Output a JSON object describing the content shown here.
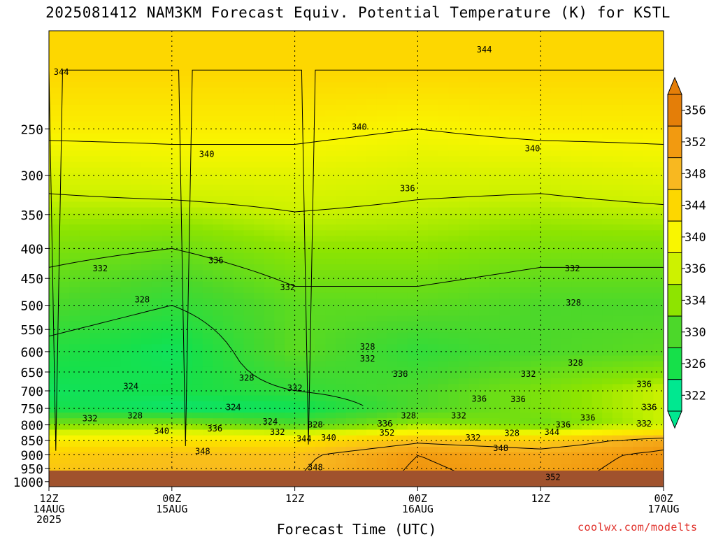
{
  "chart_data": {
    "type": "heatmap",
    "title": "2025081412 NAM3KM Forecast Equiv. Potential Temperature (K) for KSTL",
    "xlabel": "Forecast Time (UTC)",
    "ylabel": "",
    "x_ticks": [
      {
        "hour": 0,
        "lines": [
          "12Z",
          "14AUG",
          "2025"
        ]
      },
      {
        "hour": 12,
        "lines": [
          "00Z",
          "15AUG"
        ]
      },
      {
        "hour": 24,
        "lines": [
          "12Z"
        ]
      },
      {
        "hour": 36,
        "lines": [
          "00Z",
          "16AUG"
        ]
      },
      {
        "hour": 48,
        "lines": [
          "12Z"
        ]
      },
      {
        "hour": 60,
        "lines": [
          "00Z",
          "17AUG"
        ]
      }
    ],
    "xlim_hours": [
      0,
      60
    ],
    "y_scale": "log",
    "ylim_hpa": [
      1020,
      170
    ],
    "y_ticks_hpa": [
      250,
      300,
      350,
      400,
      450,
      500,
      550,
      600,
      650,
      700,
      750,
      800,
      850,
      900,
      950,
      1000
    ],
    "grid": true,
    "colorbar": {
      "labels": [
        356,
        352,
        348,
        344,
        340,
        336,
        334,
        330,
        326,
        322
      ],
      "colors": [
        "#e47e08",
        "#f29a10",
        "#f8b820",
        "#fdd700",
        "#f9f600",
        "#cdf200",
        "#8ee400",
        "#4cd82a",
        "#16e04a",
        "#00e890"
      ]
    },
    "profiles": [
      {
        "hour": 0,
        "p_hpa": [
          1000,
          900,
          850,
          800,
          750,
          700,
          600,
          500,
          400,
          300,
          250,
          200
        ],
        "theta_e_k": [
          347,
          345,
          341,
          333,
          326,
          325,
          327,
          330,
          333,
          337,
          341,
          344
        ]
      },
      {
        "hour": 12,
        "p_hpa": [
          1000,
          900,
          850,
          800,
          750,
          700,
          600,
          500,
          400,
          300,
          250,
          200
        ],
        "theta_e_k": [
          348,
          347,
          342,
          334,
          324,
          326,
          325,
          328,
          332,
          338,
          341,
          344
        ]
      },
      {
        "hour": 24,
        "p_hpa": [
          1000,
          900,
          850,
          800,
          750,
          700,
          600,
          500,
          400,
          300,
          250,
          200
        ],
        "theta_e_k": [
          348,
          347,
          342,
          330,
          325,
          328,
          331,
          331,
          334,
          338,
          341,
          344
        ]
      },
      {
        "hour": 36,
        "p_hpa": [
          1000,
          900,
          850,
          800,
          750,
          700,
          600,
          500,
          400,
          300,
          250,
          200
        ],
        "theta_e_k": [
          353,
          352,
          347,
          334,
          330,
          330,
          328,
          331,
          334,
          337,
          340,
          344
        ]
      },
      {
        "hour": 48,
        "p_hpa": [
          1000,
          900,
          850,
          800,
          750,
          700,
          600,
          500,
          400,
          300,
          250,
          200
        ],
        "theta_e_k": [
          351,
          350,
          345,
          332,
          333,
          333,
          330,
          330,
          333,
          337,
          341,
          344
        ]
      },
      {
        "hour": 60,
        "p_hpa": [
          1000,
          900,
          850,
          800,
          750,
          700,
          600,
          500,
          400,
          300,
          250,
          200
        ],
        "theta_e_k": [
          354,
          353,
          350,
          336,
          336,
          336,
          331,
          330,
          333,
          338,
          341,
          344
        ]
      }
    ],
    "contour_labels": [
      {
        "text": "344",
        "hour": 1.2,
        "p_hpa": 200
      },
      {
        "text": "344",
        "hour": 42.5,
        "p_hpa": 183
      },
      {
        "text": "340",
        "hour": 30.3,
        "p_hpa": 248
      },
      {
        "text": "340",
        "hour": 15.4,
        "p_hpa": 276
      },
      {
        "text": "340",
        "hour": 47.2,
        "p_hpa": 270
      },
      {
        "text": "336",
        "hour": 35.0,
        "p_hpa": 316
      },
      {
        "text": "336",
        "hour": 16.3,
        "p_hpa": 419
      },
      {
        "text": "332",
        "hour": 5.0,
        "p_hpa": 433
      },
      {
        "text": "332",
        "hour": 51.1,
        "p_hpa": 433
      },
      {
        "text": "332",
        "hour": 23.3,
        "p_hpa": 466
      },
      {
        "text": "328",
        "hour": 9.1,
        "p_hpa": 489
      },
      {
        "text": "328",
        "hour": 51.2,
        "p_hpa": 495
      },
      {
        "text": "328",
        "hour": 31.1,
        "p_hpa": 589
      },
      {
        "text": "332",
        "hour": 31.1,
        "p_hpa": 617
      },
      {
        "text": "328",
        "hour": 51.4,
        "p_hpa": 627
      },
      {
        "text": "328",
        "hour": 19.3,
        "p_hpa": 665
      },
      {
        "text": "336",
        "hour": 34.3,
        "p_hpa": 655
      },
      {
        "text": "332",
        "hour": 46.8,
        "p_hpa": 655
      },
      {
        "text": "324",
        "hour": 8.0,
        "p_hpa": 688
      },
      {
        "text": "332",
        "hour": 24.0,
        "p_hpa": 692
      },
      {
        "text": "336",
        "hour": 58.1,
        "p_hpa": 682
      },
      {
        "text": "336",
        "hour": 42.0,
        "p_hpa": 722
      },
      {
        "text": "336",
        "hour": 45.8,
        "p_hpa": 723
      },
      {
        "text": "324",
        "hour": 18.0,
        "p_hpa": 747
      },
      {
        "text": "336",
        "hour": 58.6,
        "p_hpa": 747
      },
      {
        "text": "328",
        "hour": 8.4,
        "p_hpa": 772
      },
      {
        "text": "328",
        "hour": 35.1,
        "p_hpa": 772
      },
      {
        "text": "332",
        "hour": 40.0,
        "p_hpa": 772
      },
      {
        "text": "336",
        "hour": 52.6,
        "p_hpa": 778
      },
      {
        "text": "332",
        "hour": 4.0,
        "p_hpa": 780
      },
      {
        "text": "324",
        "hour": 21.6,
        "p_hpa": 790
      },
      {
        "text": "328",
        "hour": 26.0,
        "p_hpa": 800
      },
      {
        "text": "336",
        "hour": 32.8,
        "p_hpa": 797
      },
      {
        "text": "336",
        "hour": 50.2,
        "p_hpa": 800
      },
      {
        "text": "332",
        "hour": 58.1,
        "p_hpa": 797
      },
      {
        "text": "340",
        "hour": 11.0,
        "p_hpa": 820
      },
      {
        "text": "336",
        "hour": 16.2,
        "p_hpa": 812
      },
      {
        "text": "332",
        "hour": 22.3,
        "p_hpa": 823
      },
      {
        "text": "352",
        "hour": 33.0,
        "p_hpa": 825
      },
      {
        "text": "344",
        "hour": 49.1,
        "p_hpa": 823
      },
      {
        "text": "328",
        "hour": 45.2,
        "p_hpa": 827
      },
      {
        "text": "344",
        "hour": 24.9,
        "p_hpa": 845
      },
      {
        "text": "340",
        "hour": 27.3,
        "p_hpa": 841
      },
      {
        "text": "332",
        "hour": 41.4,
        "p_hpa": 842
      },
      {
        "text": "348",
        "hour": 15.0,
        "p_hpa": 888
      },
      {
        "text": "348",
        "hour": 44.1,
        "p_hpa": 877
      },
      {
        "text": "348",
        "hour": 26.0,
        "p_hpa": 946
      },
      {
        "text": "352",
        "hour": 49.2,
        "p_hpa": 983
      }
    ]
  },
  "credit": "coolwx.com/modelts",
  "surface_color": "#a0522d"
}
